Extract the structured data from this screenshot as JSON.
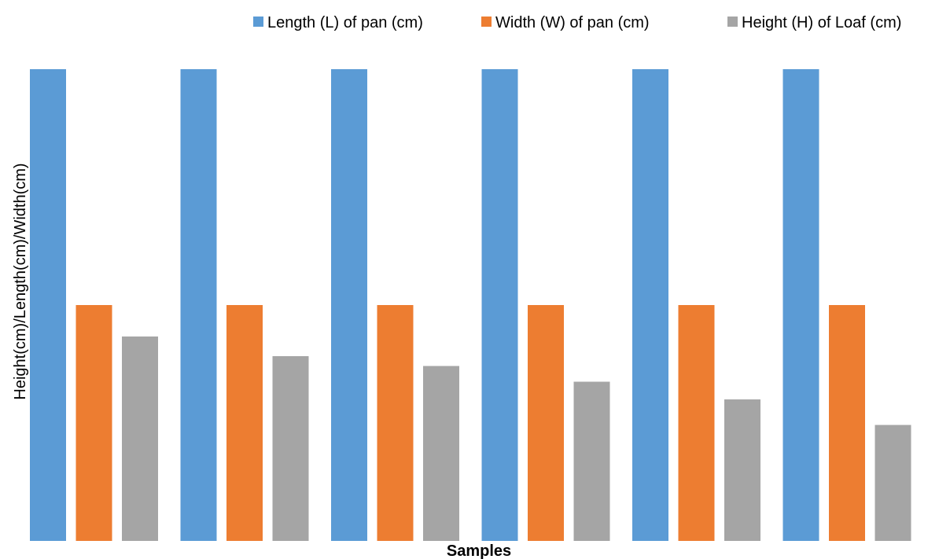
{
  "chart_data": {
    "type": "bar",
    "title": "",
    "xlabel": "Samples",
    "ylabel": "Height(cm)/Length(cm)/Width(cm)",
    "categories": [
      "",
      "",
      "",
      "",
      "",
      ""
    ],
    "ylim": [
      0,
      24
    ],
    "grid": false,
    "legend_position": "top-right",
    "series": [
      {
        "name": "Length (L) of pan (cm)",
        "color": "#5B9BD5",
        "values": [
          24,
          24,
          24,
          24,
          24,
          24
        ]
      },
      {
        "name": "Width (W) of pan (cm)",
        "color": "#ED7D31",
        "values": [
          12,
          12,
          12,
          12,
          12,
          12
        ]
      },
      {
        "name": "Height (H) of Loaf (cm)",
        "color": "#A5A5A5",
        "values": [
          10.4,
          9.4,
          8.9,
          8.1,
          7.2,
          5.9
        ]
      }
    ]
  }
}
